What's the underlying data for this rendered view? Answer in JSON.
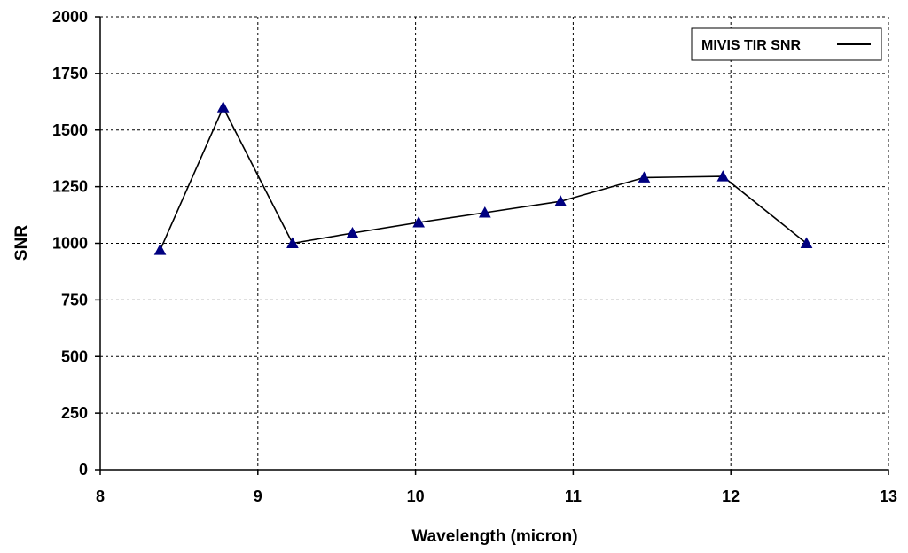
{
  "chart_data": {
    "type": "line",
    "title": "",
    "xlabel": "Wavelength (micron)",
    "ylabel": "SNR",
    "xlim": [
      8,
      13
    ],
    "ylim": [
      0,
      2000
    ],
    "x_ticks": [
      8,
      9,
      10,
      11,
      12,
      13
    ],
    "y_ticks": [
      0,
      250,
      500,
      750,
      1000,
      1250,
      1500,
      1750,
      2000
    ],
    "grid": true,
    "legend_position": "top-right",
    "series": [
      {
        "name": "MIVIS TIR SNR",
        "color": "#000000",
        "marker": "triangle",
        "marker_color": "#000080",
        "x": [
          8.38,
          8.78,
          9.22,
          9.6,
          10.02,
          10.44,
          10.92,
          11.45,
          11.95,
          12.48
        ],
        "y": [
          970,
          1600,
          1000,
          1045,
          1092,
          1135,
          1185,
          1290,
          1295,
          1000
        ]
      }
    ]
  }
}
